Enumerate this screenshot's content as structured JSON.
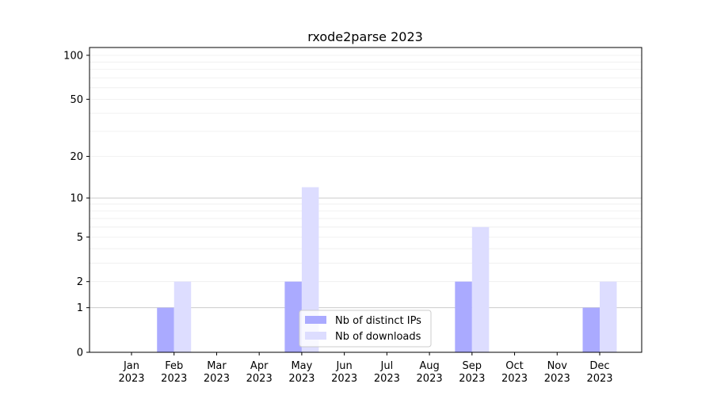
{
  "chart_data": {
    "type": "bar",
    "title": "rxode2parse 2023",
    "xlabel": "",
    "ylabel": "",
    "y_scale": "log(1+y)",
    "ylim": [
      0,
      113
    ],
    "y_ticks": [
      0,
      1,
      2,
      5,
      10,
      20,
      50,
      100
    ],
    "grid": true,
    "legend_position": "bottom-center",
    "categories": [
      "Jan\n2023",
      "Feb\n2023",
      "Mar\n2023",
      "Apr\n2023",
      "May\n2023",
      "Jun\n2023",
      "Jul\n2023",
      "Aug\n2023",
      "Sep\n2023",
      "Oct\n2023",
      "Nov\n2023",
      "Dec\n2023"
    ],
    "series": [
      {
        "name": "Nb of distinct IPs",
        "color": "#aaaaff",
        "values": [
          0,
          1,
          0,
          0,
          2,
          0,
          0,
          0,
          2,
          0,
          0,
          1
        ]
      },
      {
        "name": "Nb of downloads",
        "color": "#ddddff",
        "values": [
          0,
          2,
          0,
          0,
          12,
          0,
          0,
          0,
          6,
          0,
          0,
          2
        ]
      }
    ]
  }
}
